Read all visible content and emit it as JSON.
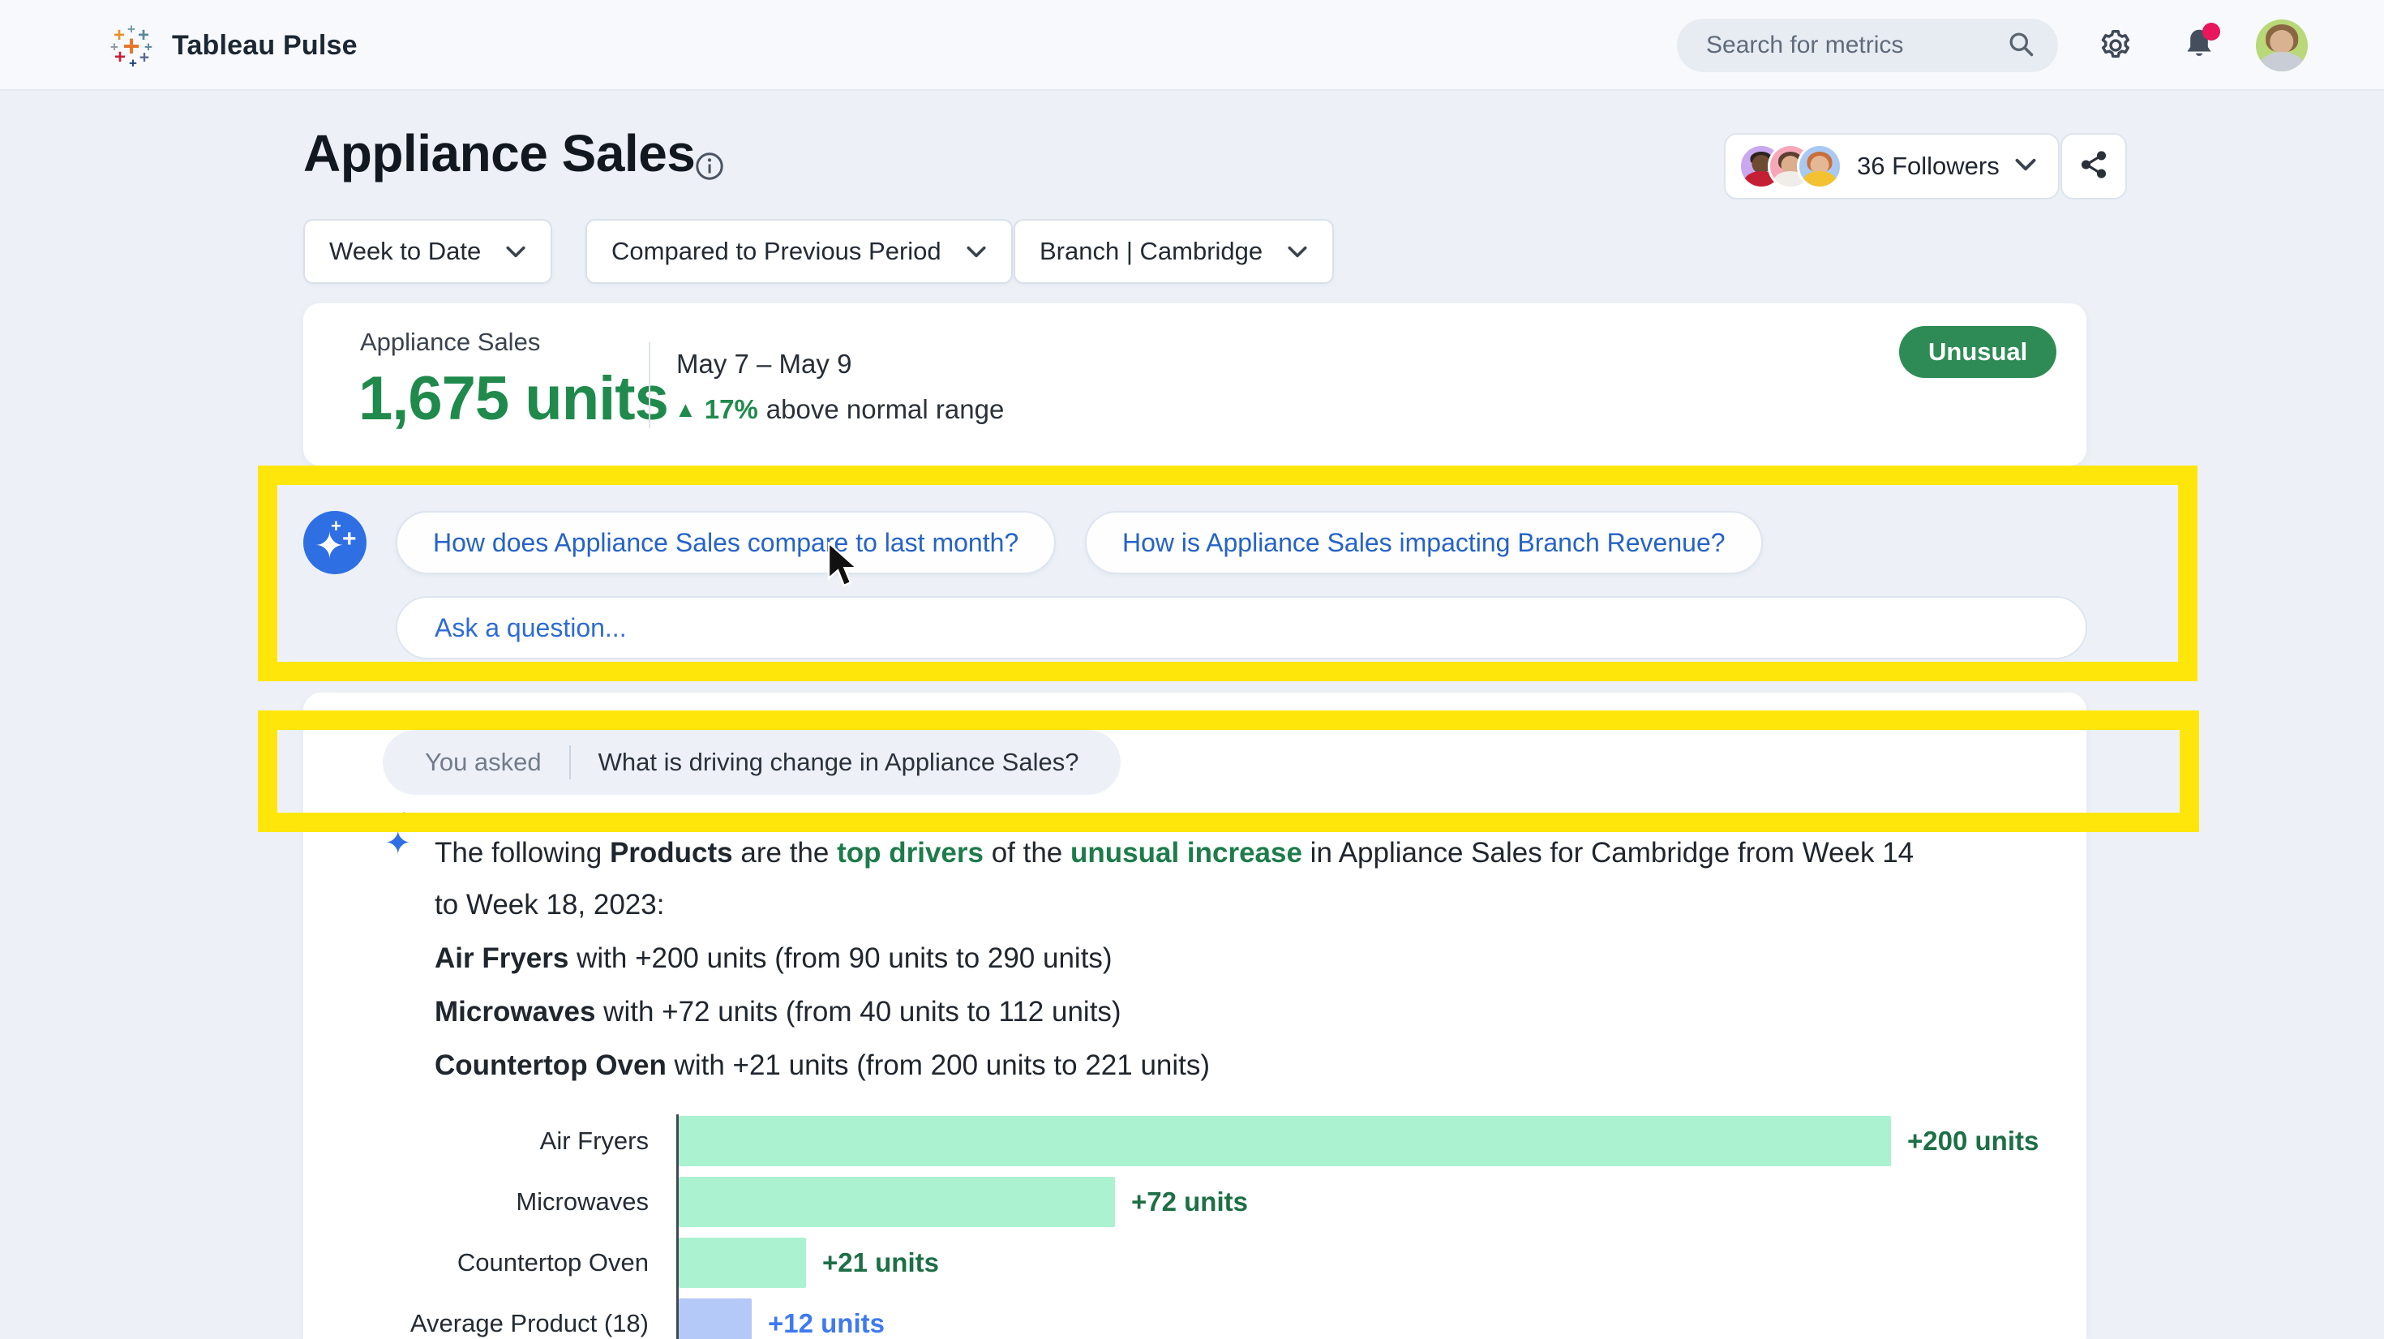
{
  "header": {
    "app_title": "Tableau Pulse",
    "search_placeholder": "Search for metrics"
  },
  "page": {
    "title": "Appliance Sales",
    "followers_label": "36 Followers",
    "filters": [
      {
        "label": "Week to Date"
      },
      {
        "label": "Compared to Previous Period"
      },
      {
        "label": "Branch | Cambridge"
      }
    ]
  },
  "metric_card": {
    "name": "Appliance Sales",
    "value": "1,675 units",
    "date_range": "May 7 – May 9",
    "delta_triangle": "▲",
    "delta_pct": "17%",
    "delta_suffix": "above normal range",
    "status_badge": "Unusual"
  },
  "ai_panel": {
    "suggestions": [
      {
        "label": "How does Appliance Sales compare to last month?"
      },
      {
        "label": "How is Appliance Sales impacting Branch Revenue?"
      }
    ],
    "ask_placeholder": "Ask a question..."
  },
  "qa": {
    "you_asked_label": "You asked",
    "question": "What is driving change in Appliance Sales?",
    "answer_intro": [
      {
        "text": "The following ",
        "style": "normal"
      },
      {
        "text": "Products",
        "style": "bold"
      },
      {
        "text": " are the ",
        "style": "normal"
      },
      {
        "text": "top drivers",
        "style": "green-bold"
      },
      {
        "text": " of the ",
        "style": "normal"
      },
      {
        "text": "unusual increase",
        "style": "green-bold"
      },
      {
        "text": " in Appliance Sales for Cambridge from Week 14 to Week 18, 2023:",
        "style": "normal"
      }
    ],
    "drivers": [
      {
        "name": "Air Fryers",
        "rest": " with +200 units (from 90 units to 290 units)"
      },
      {
        "name": "Microwaves",
        "rest": " with +72 units (from 40 units to 112 units)"
      },
      {
        "name": "Countertop Oven",
        "rest": " with +21 units (from 200 units to 221 units)"
      }
    ]
  },
  "chart_data": {
    "type": "bar",
    "orientation": "horizontal",
    "title": "",
    "categories": [
      "Air Fryers",
      "Microwaves",
      "Countertop Oven",
      "Average Product (18)"
    ],
    "values": [
      200,
      72,
      21,
      12
    ],
    "value_labels": [
      "+200 units",
      "+72 units",
      "+21 units",
      "+12 units"
    ],
    "bar_colors": [
      "#abf2d0",
      "#abf2d0",
      "#abf2d0",
      "#b5c9f8"
    ],
    "label_colors": [
      "#1d6f45",
      "#1d6f45",
      "#1d6f45",
      "#3e79f2"
    ],
    "xlim": [
      0,
      200
    ],
    "grid": false,
    "legend": false
  },
  "colors": {
    "accent_green": "#1f8a4c",
    "badge_green": "#2e8b55",
    "bar_green": "#abf2d0",
    "bar_blue": "#b5c9f8",
    "link_blue": "#2563c8",
    "highlight_yellow": "#ffe60a",
    "notification_pink": "#e8175d"
  }
}
